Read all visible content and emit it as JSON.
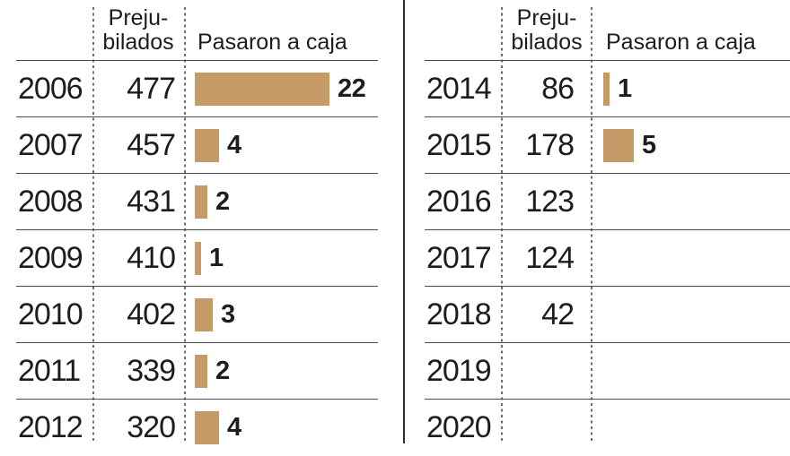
{
  "colors": {
    "bar": "#c69a66",
    "text": "#1d1d1b",
    "rule": "#4a4a4a",
    "dotted": "#6f6f6f",
    "divider": "#2e2e2e"
  },
  "chart_data": [
    {
      "type": "table",
      "position": "left",
      "title": "",
      "headers": {
        "prejubilados_line1": "Preju-",
        "prejubilados_line2": "bilados",
        "pasaron": "Pasaron a caja"
      },
      "bar_column": "pasaron",
      "rows": [
        {
          "year": "2006",
          "prejubilados": "477",
          "pasaron": 22
        },
        {
          "year": "2007",
          "prejubilados": "457",
          "pasaron": 4
        },
        {
          "year": "2008",
          "prejubilados": "431",
          "pasaron": 2
        },
        {
          "year": "2009",
          "prejubilados": "410",
          "pasaron": 1
        },
        {
          "year": "2010",
          "prejubilados": "402",
          "pasaron": 3
        },
        {
          "year": "2011",
          "prejubilados": "339",
          "pasaron": 2
        },
        {
          "year": "2012",
          "prejubilados": "320",
          "pasaron": 4
        }
      ]
    },
    {
      "type": "table",
      "position": "right",
      "title": "",
      "headers": {
        "prejubilados_line1": "Preju-",
        "prejubilados_line2": "bilados",
        "pasaron": "Pasaron a caja"
      },
      "bar_column": "pasaron",
      "rows": [
        {
          "year": "2014",
          "prejubilados": "86",
          "pasaron": 1
        },
        {
          "year": "2015",
          "prejubilados": "178",
          "pasaron": 5
        },
        {
          "year": "2016",
          "prejubilados": "123",
          "pasaron": null
        },
        {
          "year": "2017",
          "prejubilados": "124",
          "pasaron": null
        },
        {
          "year": "2018",
          "prejubilados": "42",
          "pasaron": null
        },
        {
          "year": "2019",
          "prejubilados": "",
          "pasaron": null
        },
        {
          "year": "2020",
          "prejubilados": "",
          "pasaron": null
        }
      ]
    }
  ]
}
